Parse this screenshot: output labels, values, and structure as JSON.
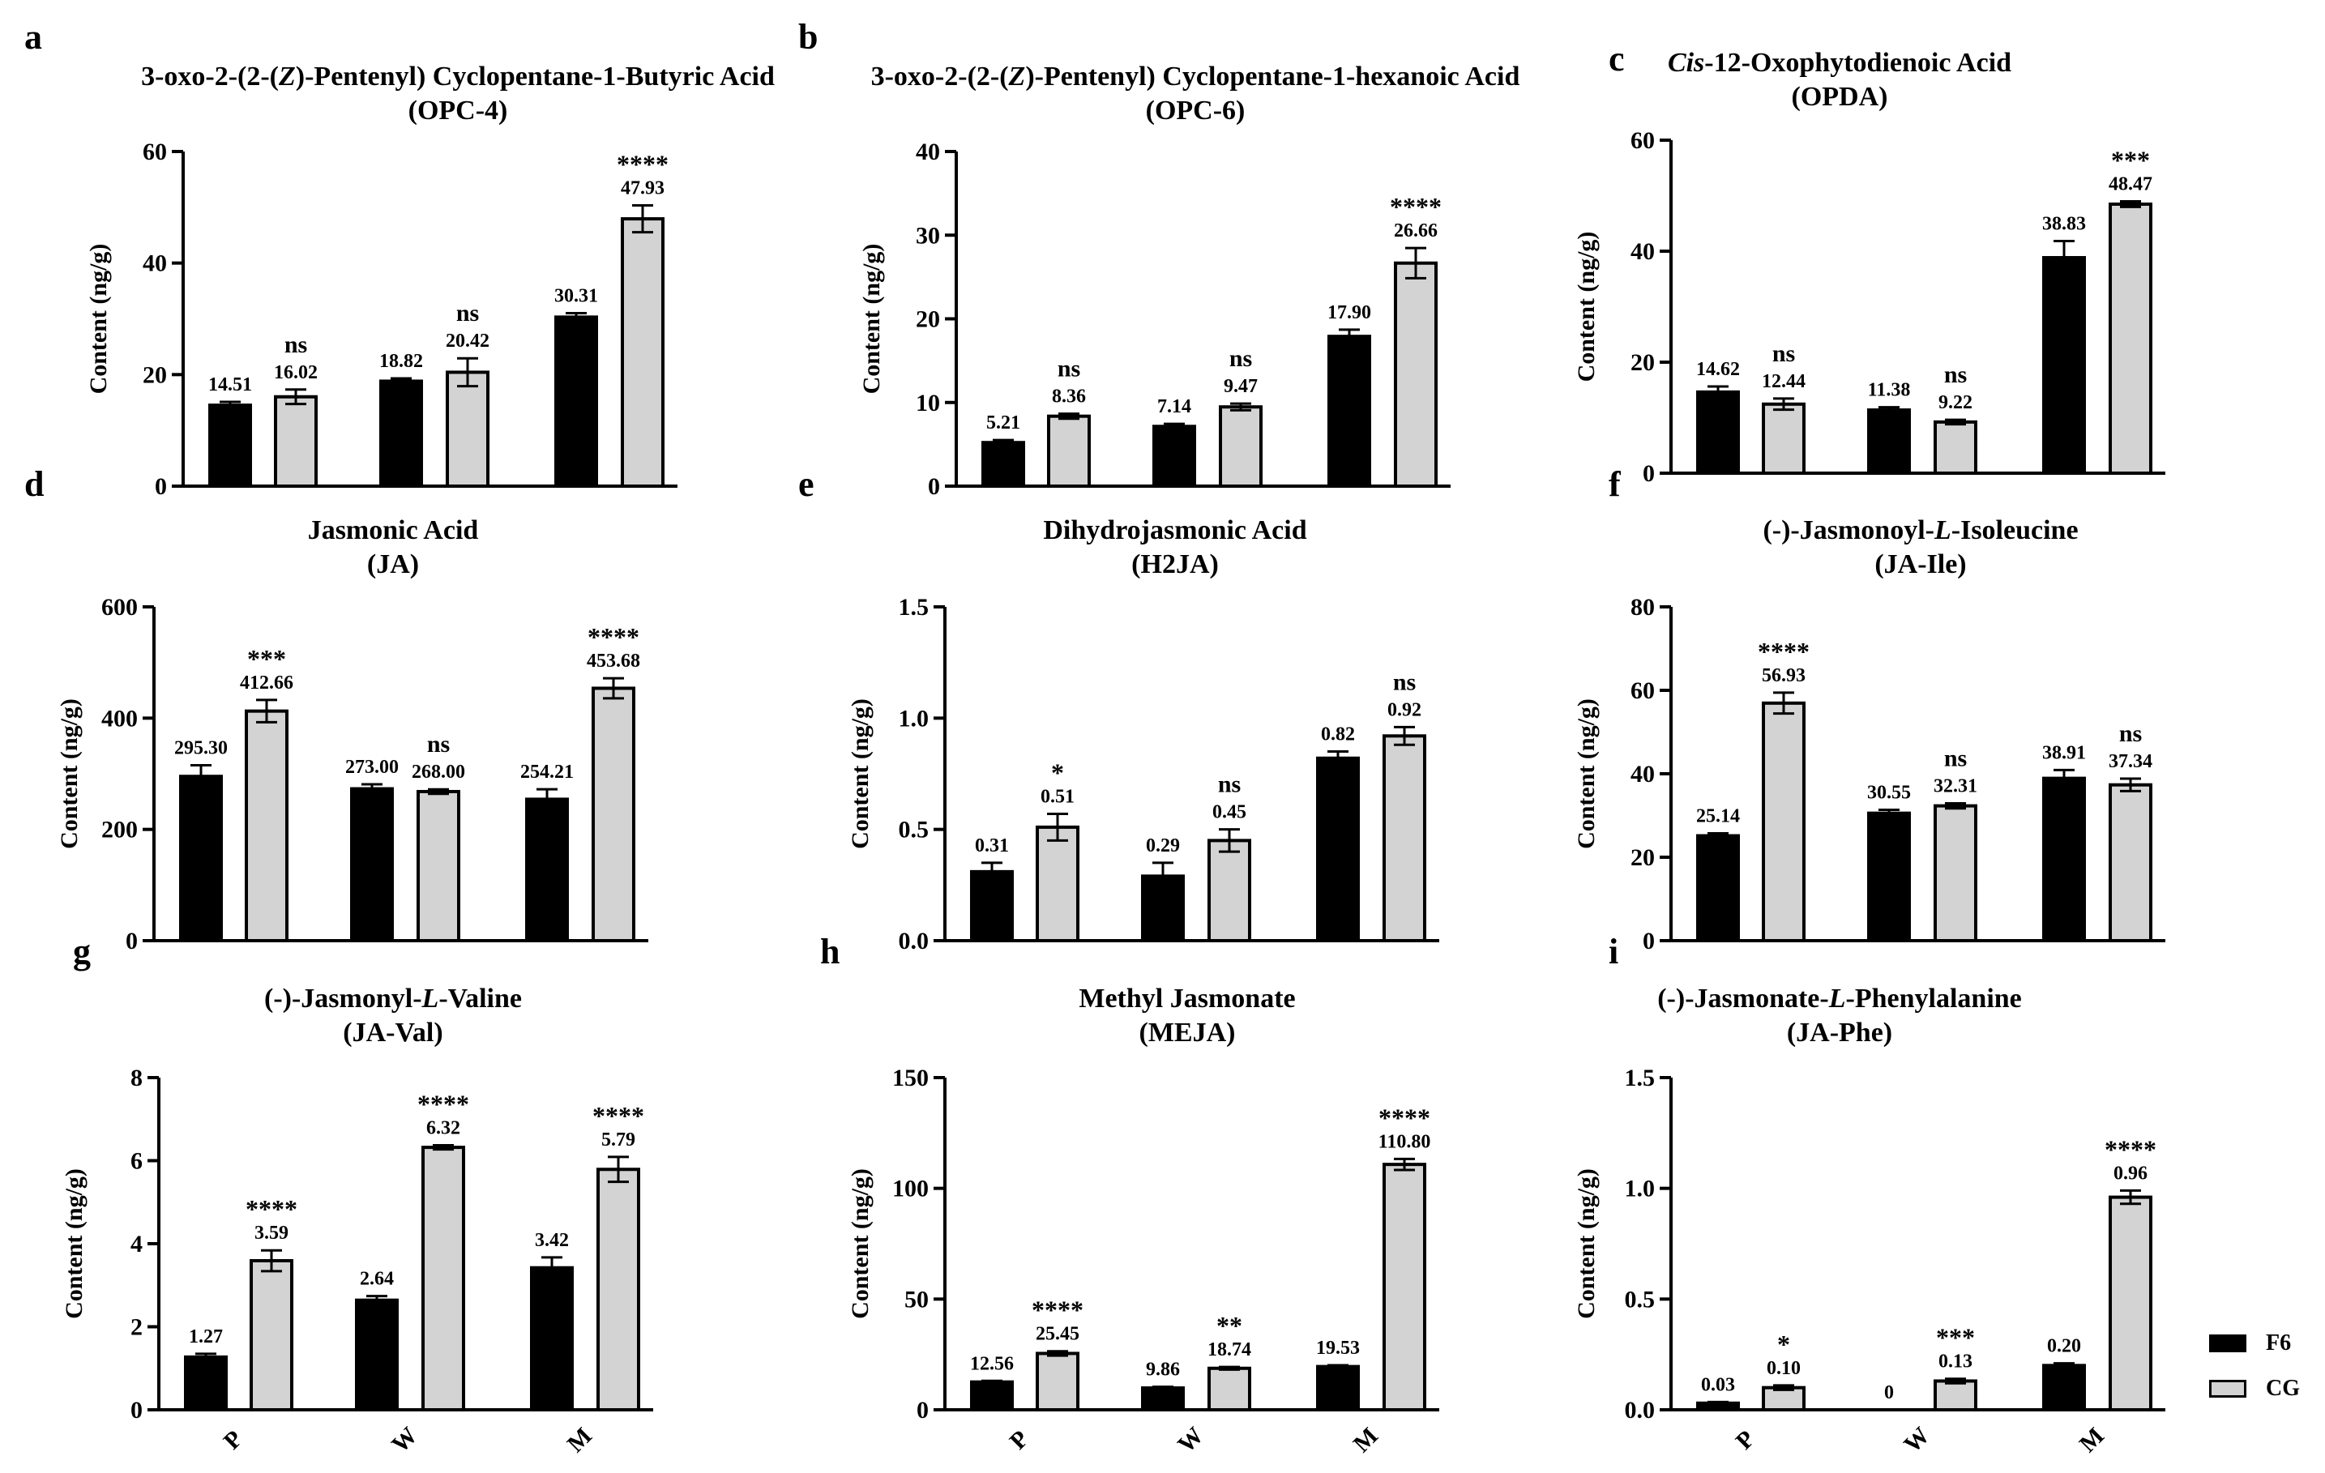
{
  "legend": {
    "f6_label": "F6",
    "cg_label": "CG",
    "f6_color": "#000000",
    "cg_color": "#d3d3d3"
  },
  "chart_data": [
    {
      "panel": "a",
      "type": "bar",
      "title_line1": "3-oxo-2-(2-(Z)-Pentenyl) Cyclopentane-1-Butyric Acid",
      "title_line2": "(OPC-4)",
      "ylabel": "Content (ng/g)",
      "ylim": [
        0,
        60
      ],
      "yticks": [
        0,
        20,
        40,
        60
      ],
      "ytick_labels": [
        "0",
        "20",
        "40",
        "60"
      ],
      "categories": [
        "P",
        "W",
        "M"
      ],
      "show_xticks": false,
      "series": [
        {
          "name": "F6",
          "values": [
            14.51,
            18.82,
            30.31
          ],
          "errors": [
            0.6,
            0.5,
            0.7
          ]
        },
        {
          "name": "CG",
          "values": [
            16.02,
            20.42,
            47.93
          ],
          "errors": [
            1.3,
            2.5,
            2.4
          ]
        }
      ],
      "value_labels": {
        "F6": [
          "14.51",
          "18.82",
          "30.31"
        ],
        "CG": [
          "16.02",
          "20.42",
          "47.93"
        ]
      },
      "significance": [
        "ns",
        "ns",
        "****"
      ]
    },
    {
      "panel": "b",
      "type": "bar",
      "title_line1": "3-oxo-2-(2-(Z)-Pentenyl) Cyclopentane-1-hexanoic Acid",
      "title_line2": "(OPC-6)",
      "ylabel": "Content (ng/g)",
      "ylim": [
        0,
        40
      ],
      "yticks": [
        0,
        10,
        20,
        30,
        40
      ],
      "ytick_labels": [
        "0",
        "10",
        "20",
        "30",
        "40"
      ],
      "categories": [
        "P",
        "W",
        "M"
      ],
      "show_xticks": false,
      "series": [
        {
          "name": "F6",
          "values": [
            5.21,
            7.14,
            17.9
          ],
          "errors": [
            0.3,
            0.3,
            0.8
          ]
        },
        {
          "name": "CG",
          "values": [
            8.36,
            9.47,
            26.66
          ],
          "errors": [
            0.3,
            0.4,
            1.8
          ]
        }
      ],
      "value_labels": {
        "F6": [
          "5.21",
          "7.14",
          "17.90"
        ],
        "CG": [
          "8.36",
          "9.47",
          "26.66"
        ]
      },
      "significance": [
        "ns",
        "ns",
        "****"
      ]
    },
    {
      "panel": "c",
      "type": "bar",
      "title_line1": "Cis-12-Oxophytodienoic Acid",
      "title_line2": "(OPDA)",
      "ylabel": "Content (ng/g)",
      "ylim": [
        0,
        60
      ],
      "yticks": [
        0,
        20,
        40,
        60
      ],
      "ytick_labels": [
        "0",
        "20",
        "40",
        "60"
      ],
      "categories": [
        "P",
        "W",
        "M"
      ],
      "show_xticks": false,
      "series": [
        {
          "name": "F6",
          "values": [
            14.62,
            11.38,
            38.83
          ],
          "errors": [
            1.0,
            0.5,
            3.0
          ]
        },
        {
          "name": "CG",
          "values": [
            12.44,
            9.22,
            48.47
          ],
          "errors": [
            1.0,
            0.4,
            0.5
          ]
        }
      ],
      "value_labels": {
        "F6": [
          "14.62",
          "11.38",
          "38.83"
        ],
        "CG": [
          "12.44",
          "9.22",
          "48.47"
        ]
      },
      "significance": [
        "ns",
        "ns",
        "***"
      ]
    },
    {
      "panel": "d",
      "type": "bar",
      "title_line1": "Jasmonic Acid",
      "title_line2": "(JA)",
      "ylabel": "Content (ng/g)",
      "ylim": [
        0,
        600
      ],
      "yticks": [
        0,
        200,
        400,
        600
      ],
      "ytick_labels": [
        "0",
        "200",
        "400",
        "600"
      ],
      "categories": [
        "P",
        "W",
        "M"
      ],
      "show_xticks": false,
      "series": [
        {
          "name": "F6",
          "values": [
            295.3,
            273.0,
            254.21
          ],
          "errors": [
            20,
            8,
            18
          ]
        },
        {
          "name": "CG",
          "values": [
            412.66,
            268.0,
            453.68
          ],
          "errors": [
            20,
            4,
            18
          ]
        }
      ],
      "value_labels": {
        "F6": [
          "295.30",
          "273.00",
          "254.21"
        ],
        "CG": [
          "412.66",
          "268.00",
          "453.68"
        ]
      },
      "significance": [
        "***",
        "ns",
        "****"
      ]
    },
    {
      "panel": "e",
      "type": "bar",
      "title_line1": "Dihydrojasmonic Acid",
      "title_line2": "(H2JA)",
      "ylabel": "Content (ng/g)",
      "ylim": [
        0,
        1.5
      ],
      "yticks": [
        0,
        0.5,
        1.0,
        1.5
      ],
      "ytick_labels": [
        "0.0",
        "0.5",
        "1.0",
        "1.5"
      ],
      "categories": [
        "P",
        "W",
        "M"
      ],
      "show_xticks": false,
      "series": [
        {
          "name": "F6",
          "values": [
            0.31,
            0.29,
            0.82
          ],
          "errors": [
            0.04,
            0.06,
            0.03
          ]
        },
        {
          "name": "CG",
          "values": [
            0.51,
            0.45,
            0.92
          ],
          "errors": [
            0.06,
            0.05,
            0.04
          ]
        }
      ],
      "value_labels": {
        "F6": [
          "0.31",
          "0.29",
          "0.82"
        ],
        "CG": [
          "0.51",
          "0.45",
          "0.92"
        ]
      },
      "significance": [
        "*",
        "ns",
        "ns"
      ]
    },
    {
      "panel": "f",
      "type": "bar",
      "title_line1": "(-)-Jasmonoyl-L-Isoleucine",
      "title_line2": "(JA-Ile)",
      "ylabel": "Content (ng/g)",
      "ylim": [
        0,
        80
      ],
      "yticks": [
        0,
        20,
        40,
        60,
        80
      ],
      "ytick_labels": [
        "0",
        "20",
        "40",
        "60",
        "80"
      ],
      "categories": [
        "P",
        "W",
        "M"
      ],
      "show_xticks": false,
      "series": [
        {
          "name": "F6",
          "values": [
            25.14,
            30.55,
            38.91
          ],
          "errors": [
            0.6,
            0.8,
            2.0
          ]
        },
        {
          "name": "CG",
          "values": [
            56.93,
            32.31,
            37.34
          ],
          "errors": [
            2.5,
            0.6,
            1.5
          ]
        }
      ],
      "value_labels": {
        "F6": [
          "25.14",
          "30.55",
          "38.91"
        ],
        "CG": [
          "56.93",
          "32.31",
          "37.34"
        ]
      },
      "significance": [
        "****",
        "ns",
        "ns"
      ]
    },
    {
      "panel": "g",
      "type": "bar",
      "title_line1": "(-)-Jasmonyl-L-Valine",
      "title_line2": "(JA-Val)",
      "ylabel": "Content (ng/g)",
      "ylim": [
        0,
        8
      ],
      "yticks": [
        0,
        2,
        4,
        6,
        8
      ],
      "ytick_labels": [
        "0",
        "2",
        "4",
        "6",
        "8"
      ],
      "categories": [
        "P",
        "W",
        "M"
      ],
      "show_xticks": true,
      "series": [
        {
          "name": "F6",
          "values": [
            1.27,
            2.64,
            3.42
          ],
          "errors": [
            0.08,
            0.1,
            0.25
          ]
        },
        {
          "name": "CG",
          "values": [
            3.59,
            6.32,
            5.79
          ],
          "errors": [
            0.25,
            0.05,
            0.3
          ]
        }
      ],
      "value_labels": {
        "F6": [
          "1.27",
          "2.64",
          "3.42"
        ],
        "CG": [
          "3.59",
          "6.32",
          "5.79"
        ]
      },
      "significance": [
        "****",
        "****",
        "****"
      ]
    },
    {
      "panel": "h",
      "type": "bar",
      "title_line1": "Methyl Jasmonate",
      "title_line2": "(MEJA)",
      "ylabel": "Content (ng/g)",
      "ylim": [
        0,
        150
      ],
      "yticks": [
        0,
        50,
        100,
        150
      ],
      "ytick_labels": [
        "0",
        "50",
        "100",
        "150"
      ],
      "categories": [
        "P",
        "W",
        "M"
      ],
      "show_xticks": true,
      "series": [
        {
          "name": "F6",
          "values": [
            12.56,
            9.86,
            19.53
          ],
          "errors": [
            0.5,
            0.5,
            0.6
          ]
        },
        {
          "name": "CG",
          "values": [
            25.45,
            18.74,
            110.8
          ],
          "errors": [
            1.0,
            0.6,
            2.5
          ]
        }
      ],
      "value_labels": {
        "F6": [
          "12.56",
          "9.86",
          "19.53"
        ],
        "CG": [
          "25.45",
          "18.74",
          "110.80"
        ]
      },
      "significance": [
        "****",
        "**",
        "****"
      ]
    },
    {
      "panel": "i",
      "type": "bar",
      "title_line1": "(-)-Jasmonate-L-Phenylalanine",
      "title_line2": "(JA-Phe)",
      "ylabel": "Content (ng/g)",
      "ylim": [
        0,
        1.5
      ],
      "yticks": [
        0,
        0.5,
        1.0,
        1.5
      ],
      "ytick_labels": [
        "0.0",
        "0.5",
        "1.0",
        "1.5"
      ],
      "categories": [
        "P",
        "W",
        "M"
      ],
      "show_xticks": true,
      "series": [
        {
          "name": "F6",
          "values": [
            0.03,
            0,
            0.2
          ],
          "errors": [
            0.005,
            0,
            0.01
          ]
        },
        {
          "name": "CG",
          "values": [
            0.1,
            0.13,
            0.96
          ],
          "errors": [
            0.01,
            0.01,
            0.03
          ]
        }
      ],
      "value_labels": {
        "F6": [
          "0.03",
          "0",
          "0.20"
        ],
        "CG": [
          "0.10",
          "0.13",
          "0.96"
        ]
      },
      "significance": [
        "*",
        "***",
        "****"
      ]
    }
  ]
}
